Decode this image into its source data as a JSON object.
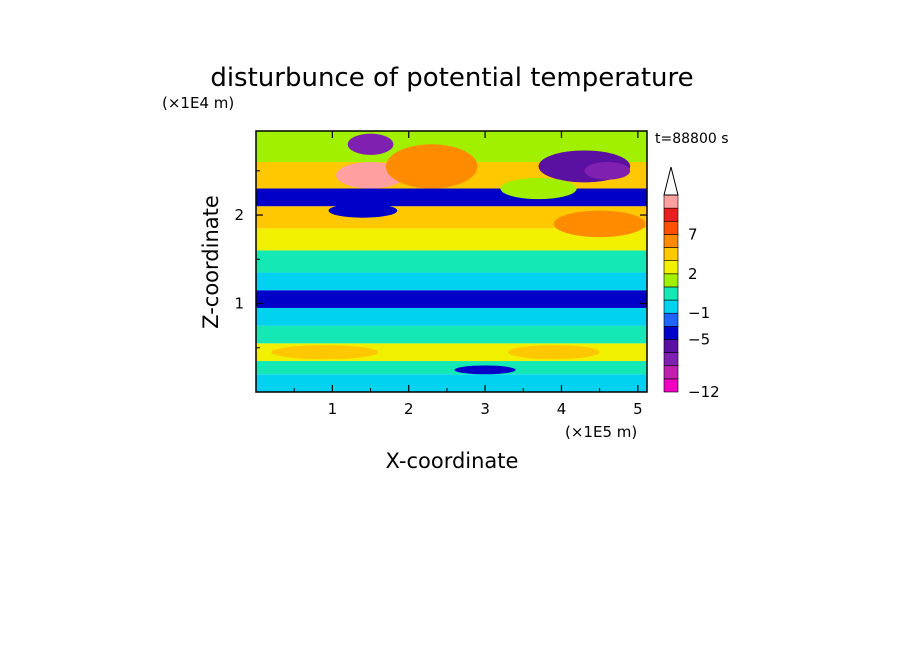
{
  "chart_data": {
    "type": "heatmap",
    "title": "disturbunce of potential temperature",
    "time_label": "t=88800 s",
    "xlabel": "X-coordinate",
    "ylabel": "Z-coordinate",
    "x_unit": "(×1E5 m)",
    "y_unit": "(×1E4 m)",
    "xlim": [
      0,
      5.12
    ],
    "ylim": [
      0,
      2.95
    ],
    "x_ticks": [
      1,
      2,
      3,
      4,
      5
    ],
    "y_ticks": [
      1,
      2
    ],
    "colorbar": {
      "levels": [
        -12,
        -11,
        -9,
        -7,
        -5,
        -3,
        -1,
        0,
        1,
        2,
        3,
        5,
        7,
        8,
        10,
        11
      ],
      "tick_labels": [
        "-12",
        "-5",
        "-1",
        "2",
        "7"
      ],
      "tick_values": [
        -12,
        -5,
        -1,
        2,
        7
      ],
      "colors": [
        "#f000c0",
        "#c020b0",
        "#8020b0",
        "#5a10a0",
        "#0000c8",
        "#1e64ff",
        "#00d2f0",
        "#14e8b4",
        "#a0f000",
        "#f0f000",
        "#ffc800",
        "#ff8c00",
        "#ff5000",
        "#e61e1e",
        "#ffa0a0"
      ],
      "extend": "max"
    },
    "bands": [
      {
        "z0": 0.0,
        "z1": 0.05,
        "value": -1
      },
      {
        "z0": 0.05,
        "z1": 0.2,
        "value": -1,
        "text": "thin cyan/blue streaks"
      },
      {
        "z0": 0.2,
        "z1": 0.35,
        "value": 0
      },
      {
        "z0": 0.35,
        "z1": 0.55,
        "value": 2
      },
      {
        "z0": 0.55,
        "z1": 0.75,
        "value": 0.5
      },
      {
        "z0": 0.75,
        "z1": 0.95,
        "value": -1
      },
      {
        "z0": 0.95,
        "z1": 1.15,
        "value": -5
      },
      {
        "z0": 1.15,
        "z1": 1.35,
        "value": -1
      },
      {
        "z0": 1.35,
        "z1": 1.6,
        "value": 0
      },
      {
        "z0": 1.6,
        "z1": 1.85,
        "value": 2
      },
      {
        "z0": 1.85,
        "z1": 2.1,
        "value": 3
      },
      {
        "z0": 2.1,
        "z1": 2.3,
        "value": -5
      },
      {
        "z0": 2.3,
        "z1": 2.6,
        "value": 3
      },
      {
        "z0": 2.6,
        "z1": 2.95,
        "value": 1
      }
    ],
    "features": [
      {
        "x": 1.5,
        "z": 2.45,
        "rx": 0.45,
        "rz": 0.15,
        "value": 10
      },
      {
        "x": 1.45,
        "z": 2.45,
        "rx": 0.2,
        "rz": 0.07,
        "value": 11
      },
      {
        "x": 2.3,
        "z": 2.55,
        "rx": 0.6,
        "rz": 0.25,
        "value": 5
      },
      {
        "x": 1.5,
        "z": 2.8,
        "rx": 0.3,
        "rz": 0.12,
        "value": -9
      },
      {
        "x": 4.3,
        "z": 2.55,
        "rx": 0.6,
        "rz": 0.18,
        "value": -7
      },
      {
        "x": 4.6,
        "z": 2.5,
        "rx": 0.3,
        "rz": 0.1,
        "value": -9
      },
      {
        "x": 3.7,
        "z": 2.3,
        "rx": 0.5,
        "rz": 0.12,
        "value": 1
      },
      {
        "x": 4.5,
        "z": 1.9,
        "rx": 0.6,
        "rz": 0.15,
        "value": 5
      },
      {
        "x": 0.4,
        "z": 2.2,
        "rx": 0.4,
        "rz": 0.08,
        "value": -5
      },
      {
        "x": 1.4,
        "z": 2.05,
        "rx": 0.45,
        "rz": 0.08,
        "value": -5
      },
      {
        "x": 0.9,
        "z": 0.45,
        "rx": 0.7,
        "rz": 0.08,
        "value": 3
      },
      {
        "x": 3.9,
        "z": 0.45,
        "rx": 0.6,
        "rz": 0.08,
        "value": 3
      },
      {
        "x": 3.0,
        "z": 0.25,
        "rx": 0.4,
        "rz": 0.05,
        "value": -5
      }
    ]
  }
}
